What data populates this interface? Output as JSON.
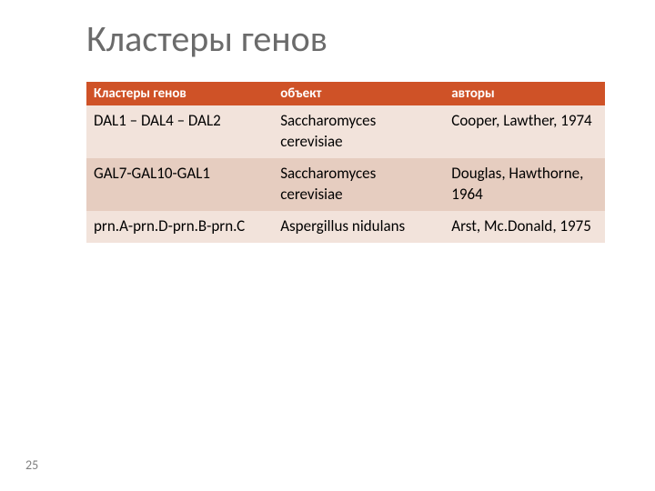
{
  "title": "Кластеры генов",
  "table": {
    "columns": [
      "Кластеры генов",
      "объект",
      "авторы"
    ],
    "header_bg": "#cf5227",
    "header_fg": "#ffffff",
    "row_colors": [
      "#f2e3db",
      "#e6cdc0"
    ],
    "rows": [
      [
        "DAL1 – DAL4 – DAL2",
        "Saccharomyces cerevisiae",
        "Cooper, Lawther, 1974"
      ],
      [
        "GAL7-GAL10-GAL1",
        "Saccharomyces cerevisiae",
        "Douglas, Hawthorne, 1964"
      ],
      [
        "prn.A-prn.D-prn.B-prn.C",
        "Aspergillus nidulans",
        "Arst, Mc.Donald, 1975"
      ]
    ]
  },
  "page_number": "25",
  "title_color": "#6b6b6b",
  "title_fontsize": 40,
  "body_fontsize": 17
}
